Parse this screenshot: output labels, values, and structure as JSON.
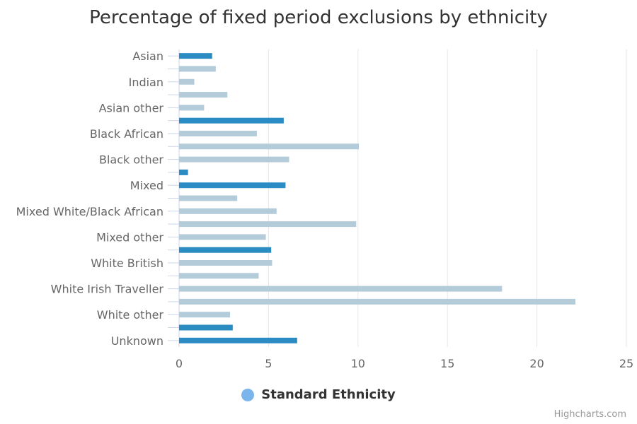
{
  "chart_data": {
    "type": "bar",
    "orientation": "horizontal",
    "title": "Percentage of fixed period exclusions by ethnicity",
    "categories": [
      "Asian",
      "",
      "Indian",
      "",
      "Asian other",
      "",
      "Black African",
      "",
      "Black other",
      "",
      "Mixed",
      "",
      "Mixed White/Black African",
      "",
      "Mixed other",
      "",
      "White British",
      "",
      "White Irish Traveller",
      "",
      "White other",
      "",
      "Unknown"
    ],
    "values": [
      1.85,
      2.05,
      0.85,
      2.7,
      1.4,
      5.85,
      4.35,
      10.05,
      6.15,
      0.5,
      5.95,
      3.25,
      5.45,
      9.9,
      4.85,
      5.15,
      5.2,
      4.45,
      18.05,
      22.15,
      2.85,
      3.0,
      6.6
    ],
    "highlight": [
      true,
      false,
      false,
      false,
      false,
      true,
      false,
      false,
      false,
      true,
      true,
      false,
      false,
      false,
      false,
      true,
      false,
      false,
      false,
      false,
      false,
      true,
      true
    ],
    "xlim": [
      0,
      25
    ],
    "ticks": [
      0,
      5,
      10,
      15,
      20,
      25
    ],
    "grid": true,
    "legend": {
      "position": "bottom-center",
      "label": "Standard Ethnicity",
      "color": "#7cb5ec"
    },
    "colors": {
      "highlight": "#2b8cc4",
      "normal": "#b4cbd9",
      "grid": "#e6e6e6",
      "axis_line": "#ccd6eb",
      "label": "#666666"
    }
  },
  "credits": "Highcharts.com"
}
